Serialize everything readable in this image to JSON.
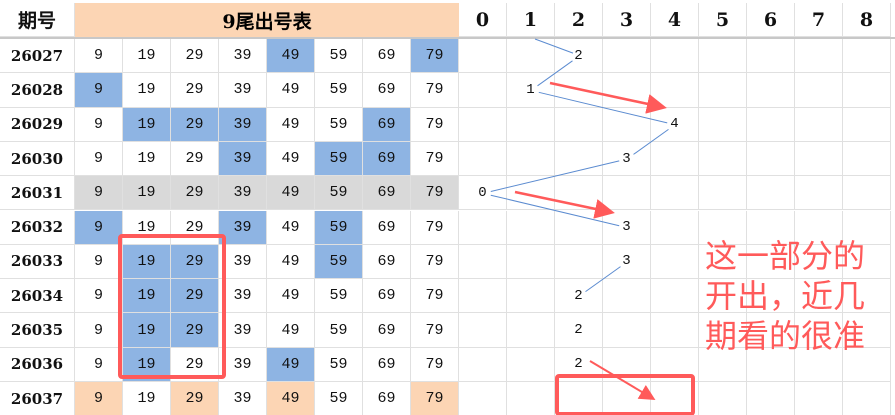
{
  "header": {
    "period_label": "期号",
    "title": "9尾出号表",
    "count_columns": [
      "0",
      "1",
      "2",
      "3",
      "4",
      "5",
      "6",
      "7",
      "8"
    ]
  },
  "numbers": [
    "9",
    "19",
    "29",
    "39",
    "49",
    "59",
    "69",
    "79"
  ],
  "rows": [
    {
      "period": "26027",
      "highlight": [
        4,
        7
      ],
      "style": "blue",
      "count": 2
    },
    {
      "period": "26028",
      "highlight": [
        0
      ],
      "style": "blue",
      "count": 1
    },
    {
      "period": "26029",
      "highlight": [
        1,
        2,
        3,
        6
      ],
      "style": "blue",
      "count": 4
    },
    {
      "period": "26030",
      "highlight": [
        3,
        5,
        6
      ],
      "style": "blue",
      "count": 3
    },
    {
      "period": "26031",
      "highlight": [
        0,
        1,
        2,
        3,
        4,
        5,
        6,
        7
      ],
      "style": "gray",
      "count": 0
    },
    {
      "period": "26032",
      "highlight": [
        0,
        3,
        5
      ],
      "style": "blue",
      "count": 3
    },
    {
      "period": "26033",
      "highlight": [
        1,
        2,
        5
      ],
      "style": "blue",
      "count": 3
    },
    {
      "period": "26034",
      "highlight": [
        1,
        2
      ],
      "style": "blue",
      "count": 2
    },
    {
      "period": "26035",
      "highlight": [
        1,
        2
      ],
      "style": "blue",
      "count": 2
    },
    {
      "period": "26036",
      "highlight": [
        1,
        4
      ],
      "style": "blue",
      "count": 2
    },
    {
      "period": "26037",
      "highlight": [
        0,
        2,
        4,
        7
      ],
      "style": "peach",
      "count": null
    }
  ],
  "colors": {
    "blue": "#8eb4e3",
    "gray": "#d9d9d9",
    "peach": "#fcd5b4",
    "annotation": "#ff5a5a",
    "trend_line": "#5b8bd0"
  },
  "annotation": "这一部分的开出，近几期看的很准"
}
